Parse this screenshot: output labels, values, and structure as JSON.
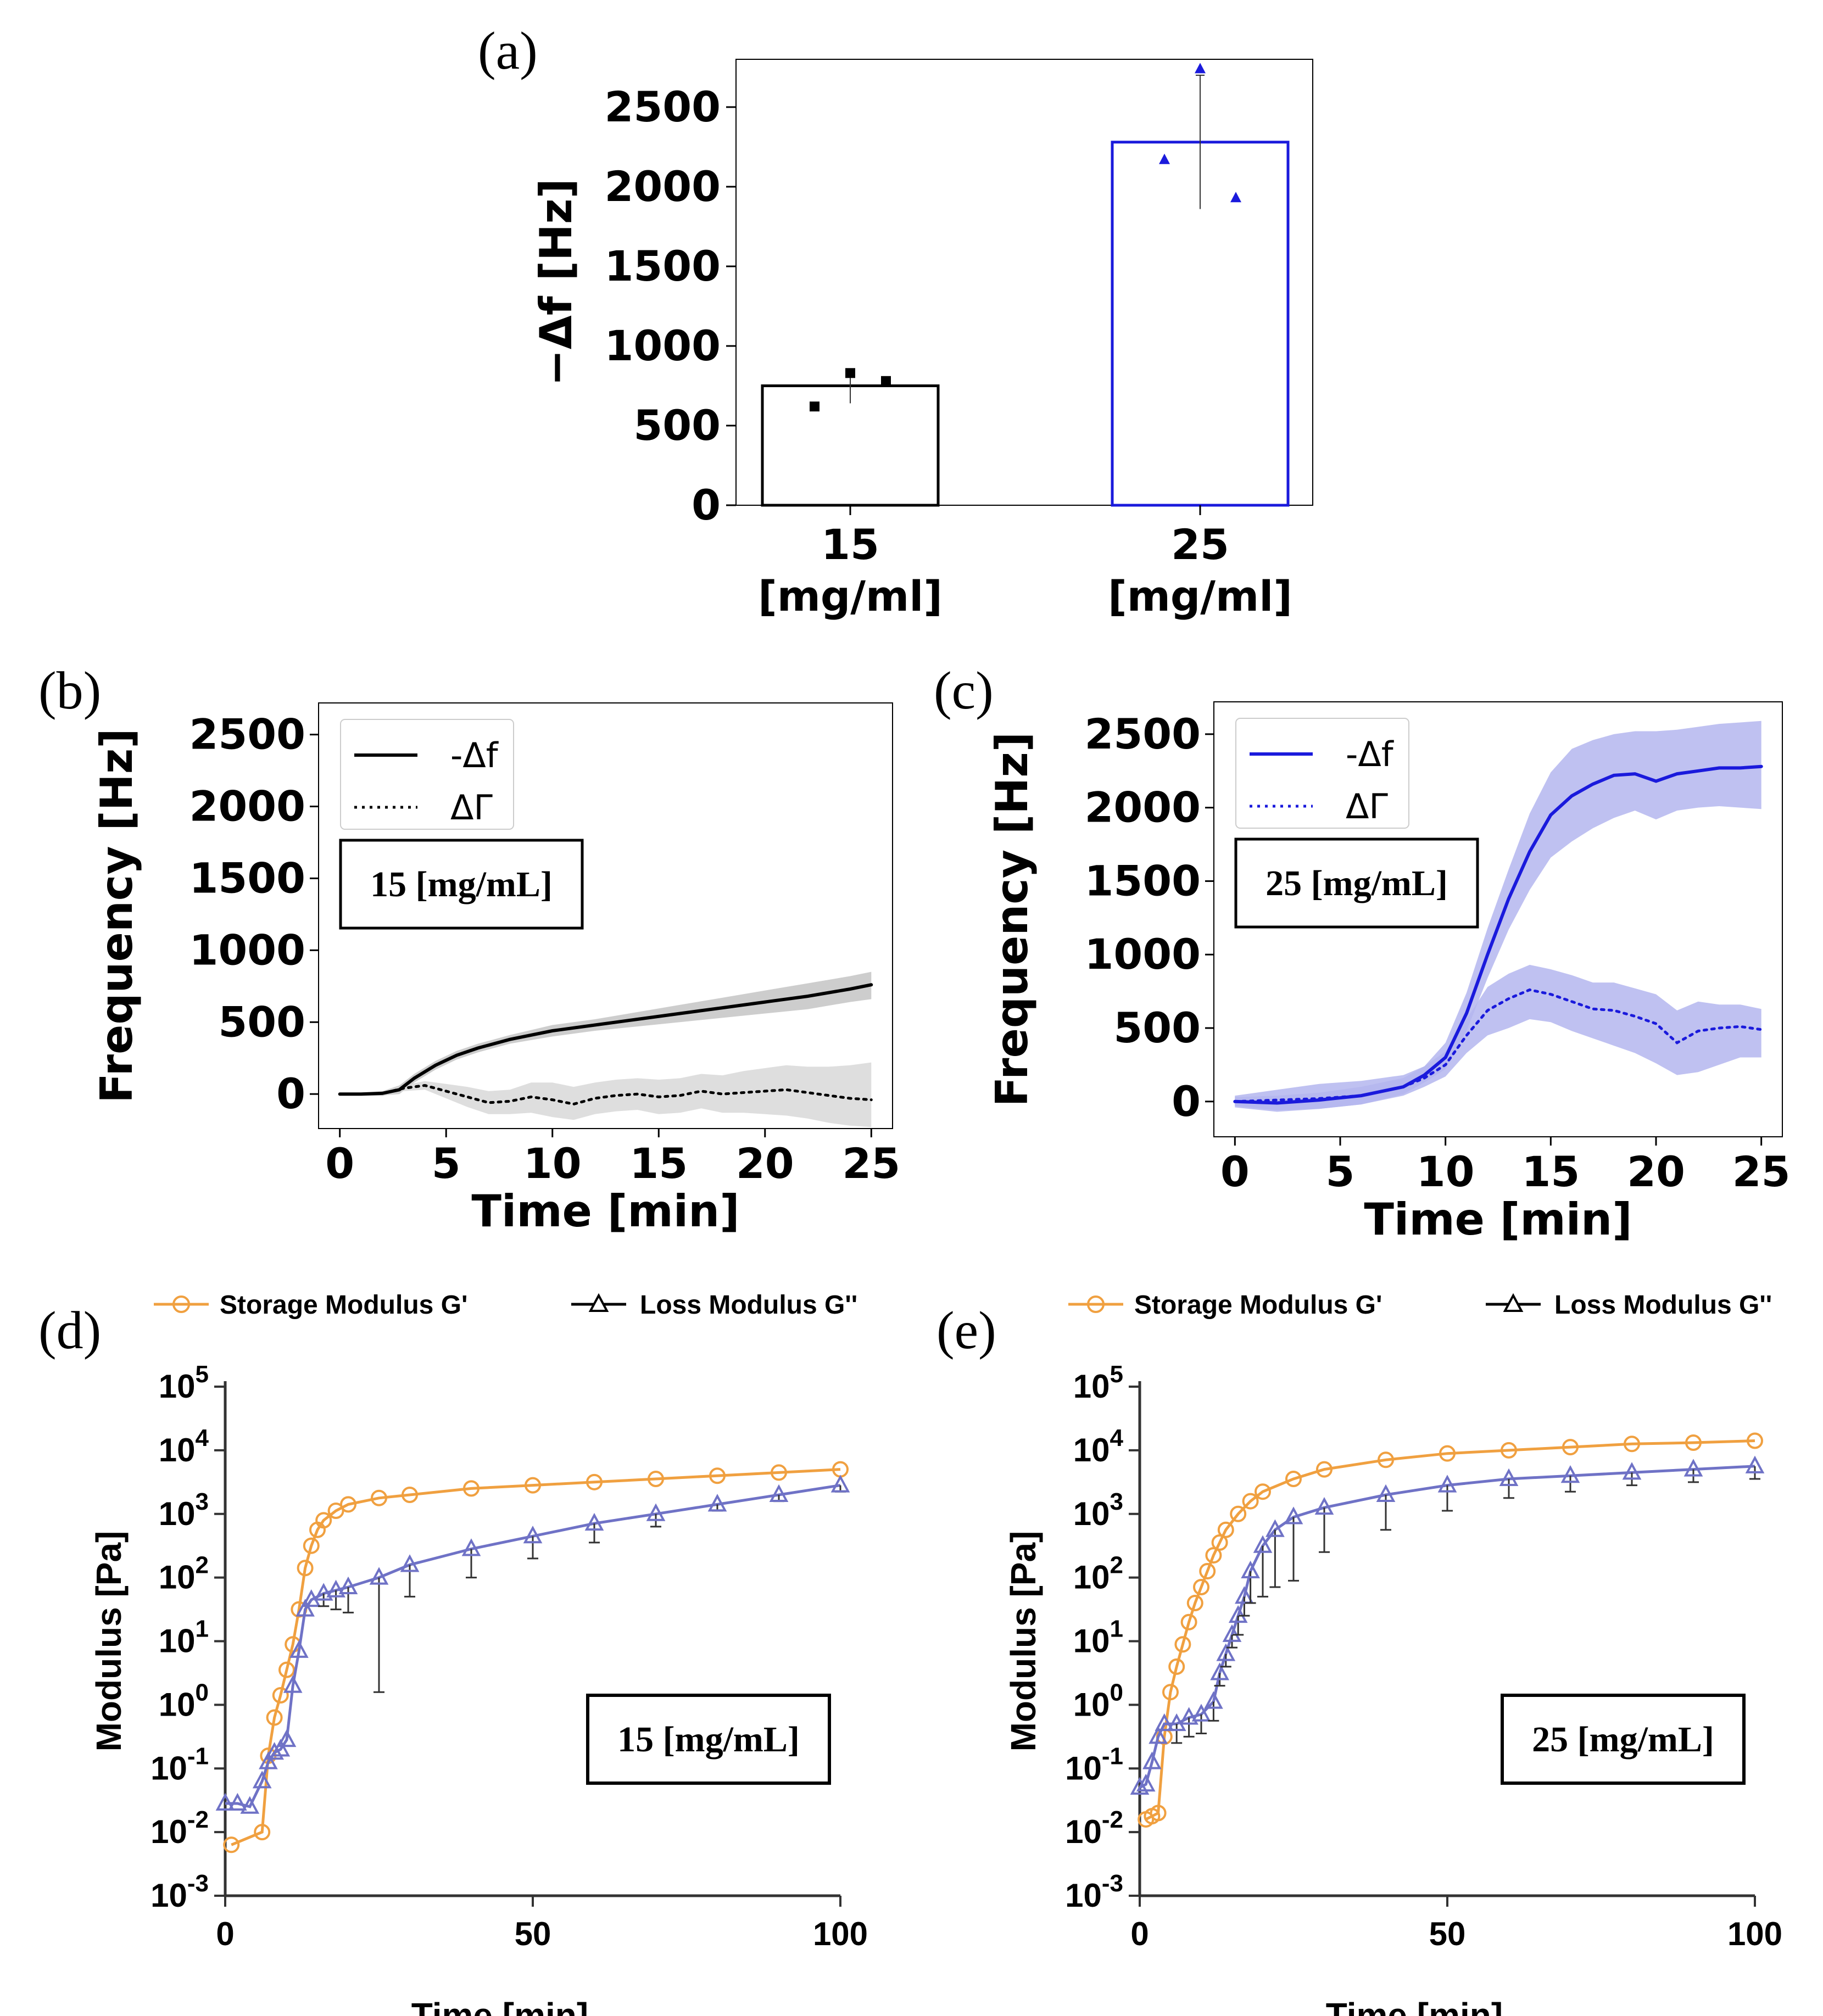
{
  "colors": {
    "black": "#000000",
    "blue": "#1a1adc",
    "blue_band": "#b4b6ee",
    "gray_band": "#c4c4c4",
    "orange": "#f0a040",
    "rheo_blue": "#6f72c6",
    "rheo_axis": "#333333"
  },
  "chart_data": [
    {
      "panel": "(a)",
      "type": "bar",
      "categories": [
        "15",
        "25"
      ],
      "category_units": [
        "[mg/ml]",
        "[mg/ml]"
      ],
      "values": [
        750,
        2280
      ],
      "errors": [
        [
          640,
          830
        ],
        [
          1860,
          2700
        ]
      ],
      "points": [
        [
          620,
          830,
          780
        ],
        [
          2170,
          2740,
          1930
        ]
      ],
      "bar_colors": [
        "#000000",
        "#1a1adc"
      ],
      "ylabel": "−Δf [Hz]",
      "ylim": [
        0,
        2800
      ],
      "yticks": [
        0,
        500,
        1000,
        1500,
        2000,
        2500
      ]
    },
    {
      "panel": "(b)",
      "type": "line",
      "xlabel": "Time [min]",
      "ylabel": "Frequency [Hz]",
      "xlim": [
        -1,
        26
      ],
      "ylim": [
        -240,
        2720
      ],
      "xticks": [
        0,
        5,
        10,
        15,
        20,
        25
      ],
      "yticks": [
        0,
        500,
        1000,
        1500,
        2000,
        2500
      ],
      "annotation": "15 [mg/mL]",
      "series": [
        {
          "name": "-Δf",
          "style": "solid",
          "color": "#000000",
          "band_color": "#c4c4c4",
          "x": [
            0,
            1,
            2,
            2.8,
            3.5,
            4.5,
            5.5,
            6.5,
            8,
            10,
            12,
            14,
            16,
            18,
            20,
            22,
            24,
            25
          ],
          "y": [
            0,
            0,
            5,
            30,
            110,
            200,
            270,
            320,
            380,
            440,
            480,
            520,
            560,
            600,
            640,
            680,
            730,
            760
          ],
          "band": [
            [
              0,
              0
            ],
            [
              -8,
              8
            ],
            [
              -10,
              20
            ],
            [
              0,
              60
            ],
            [
              80,
              140
            ],
            [
              170,
              230
            ],
            [
              240,
              300
            ],
            [
              290,
              350
            ],
            [
              350,
              410
            ],
            [
              400,
              480
            ],
            [
              440,
              520
            ],
            [
              470,
              570
            ],
            [
              500,
              620
            ],
            [
              530,
              670
            ],
            [
              560,
              720
            ],
            [
              590,
              770
            ],
            [
              640,
              820
            ],
            [
              660,
              850
            ]
          ]
        },
        {
          "name": "ΔΓ",
          "style": "dotted",
          "color": "#000000",
          "band_color": "#d8d8d8",
          "x": [
            0,
            1,
            2,
            3,
            4,
            5,
            6,
            7,
            8,
            9,
            10,
            11,
            12,
            13,
            14,
            15,
            16,
            17,
            18,
            19,
            20,
            21,
            22,
            23,
            24,
            25
          ],
          "y": [
            0,
            0,
            5,
            40,
            60,
            20,
            -20,
            -60,
            -50,
            -20,
            -40,
            -70,
            -30,
            -10,
            0,
            -20,
            -10,
            20,
            0,
            10,
            20,
            30,
            10,
            -10,
            -30,
            -40
          ],
          "band": [
            [
              0,
              0
            ],
            [
              -10,
              10
            ],
            [
              -15,
              20
            ],
            [
              20,
              60
            ],
            [
              30,
              90
            ],
            [
              -30,
              70
            ],
            [
              -90,
              50
            ],
            [
              -140,
              20
            ],
            [
              -140,
              30
            ],
            [
              -130,
              80
            ],
            [
              -160,
              80
            ],
            [
              -180,
              50
            ],
            [
              -140,
              80
            ],
            [
              -120,
              100
            ],
            [
              -110,
              110
            ],
            [
              -140,
              100
            ],
            [
              -130,
              110
            ],
            [
              -100,
              140
            ],
            [
              -130,
              130
            ],
            [
              -130,
              160
            ],
            [
              -140,
              180
            ],
            [
              -150,
              200
            ],
            [
              -170,
              190
            ],
            [
              -200,
              190
            ],
            [
              -220,
              200
            ],
            [
              -230,
              220
            ]
          ]
        }
      ],
      "legend": [
        "-Δf",
        "ΔΓ"
      ]
    },
    {
      "panel": "(c)",
      "type": "line",
      "xlabel": "Time [min]",
      "ylabel": "Frequency [Hz]",
      "xlim": [
        -1,
        26
      ],
      "ylim": [
        -240,
        2720
      ],
      "xticks": [
        0,
        5,
        10,
        15,
        20,
        25
      ],
      "yticks": [
        0,
        500,
        1000,
        1500,
        2000,
        2500
      ],
      "annotation": "25 [mg/mL]",
      "series": [
        {
          "name": "-Δf",
          "style": "solid",
          "color": "#1a1adc",
          "band_color": "#b4b6ee",
          "x": [
            0,
            2,
            4,
            6,
            8,
            9,
            10,
            11,
            12,
            13,
            14,
            15,
            16,
            17,
            18,
            19,
            20,
            21,
            22,
            23,
            24,
            25
          ],
          "y": [
            0,
            -10,
            10,
            40,
            100,
            180,
            300,
            600,
            1000,
            1380,
            1700,
            1950,
            2080,
            2160,
            2220,
            2230,
            2180,
            2230,
            2250,
            2270,
            2270,
            2280
          ],
          "band": [
            [
              -30,
              30
            ],
            [
              -60,
              40
            ],
            [
              -50,
              60
            ],
            [
              -20,
              100
            ],
            [
              50,
              160
            ],
            [
              130,
              240
            ],
            [
              220,
              400
            ],
            [
              480,
              740
            ],
            [
              840,
              1180
            ],
            [
              1170,
              1580
            ],
            [
              1440,
              1960
            ],
            [
              1660,
              2240
            ],
            [
              1770,
              2400
            ],
            [
              1860,
              2460
            ],
            [
              1930,
              2500
            ],
            [
              1980,
              2520
            ],
            [
              1920,
              2520
            ],
            [
              1980,
              2530
            ],
            [
              2000,
              2550
            ],
            [
              2010,
              2570
            ],
            [
              2000,
              2580
            ],
            [
              1990,
              2590
            ]
          ]
        },
        {
          "name": "ΔΓ",
          "style": "dotted",
          "color": "#1a1adc",
          "band_color": "#b4b6ee",
          "x": [
            0,
            2,
            4,
            6,
            8,
            9,
            10,
            11,
            12,
            13,
            14,
            15,
            16,
            17,
            18,
            19,
            20,
            21,
            22,
            23,
            24,
            25
          ],
          "y": [
            0,
            10,
            20,
            40,
            100,
            160,
            250,
            450,
            620,
            700,
            760,
            730,
            680,
            630,
            620,
            580,
            530,
            400,
            480,
            500,
            510,
            490
          ],
          "band": [
            [
              -40,
              40
            ],
            [
              -70,
              80
            ],
            [
              -50,
              120
            ],
            [
              -20,
              140
            ],
            [
              40,
              180
            ],
            [
              100,
              240
            ],
            [
              170,
              340
            ],
            [
              330,
              560
            ],
            [
              450,
              780
            ],
            [
              500,
              870
            ],
            [
              560,
              930
            ],
            [
              540,
              900
            ],
            [
              480,
              860
            ],
            [
              430,
              810
            ],
            [
              380,
              810
            ],
            [
              330,
              770
            ],
            [
              260,
              730
            ],
            [
              180,
              620
            ],
            [
              200,
              680
            ],
            [
              250,
              660
            ],
            [
              300,
              660
            ],
            [
              300,
              630
            ]
          ]
        }
      ],
      "legend": [
        "-Δf",
        "ΔΓ"
      ]
    },
    {
      "panel": "(d)",
      "type": "scatter",
      "xlabel": "Time [min]",
      "ylabel": "Modulus [Pa]",
      "yscale": "log",
      "xlim": [
        0,
        100
      ],
      "ylim_log10": [
        -3,
        5
      ],
      "xticks": [
        0,
        50,
        100
      ],
      "ytick_exponents": [
        -3,
        -2,
        -1,
        0,
        1,
        2,
        3,
        4,
        5
      ],
      "annotation": "15 [mg/mL]",
      "legend": [
        "Storage Modulus G'",
        "Loss Modulus G''"
      ],
      "series": [
        {
          "name": "Storage Modulus G'",
          "marker": "circle",
          "color": "#f0a040",
          "x": [
            1,
            6,
            7,
            8,
            9,
            10,
            11,
            12,
            13,
            14,
            15,
            16,
            18,
            20,
            25,
            30,
            40,
            50,
            60,
            70,
            80,
            90,
            100
          ],
          "log10_y": [
            -2.2,
            -2.0,
            -0.8,
            -0.2,
            0.15,
            0.55,
            0.95,
            1.5,
            2.15,
            2.5,
            2.75,
            2.9,
            3.05,
            3.15,
            3.25,
            3.3,
            3.4,
            3.45,
            3.5,
            3.55,
            3.6,
            3.65,
            3.7
          ]
        },
        {
          "name": "Loss Modulus G''",
          "marker": "triangle",
          "color": "#6f72c6",
          "x": [
            0,
            2,
            4,
            6,
            7,
            8,
            9,
            10,
            11,
            12,
            13,
            14,
            16,
            18,
            20,
            25,
            30,
            40,
            50,
            60,
            70,
            80,
            90,
            100
          ],
          "log10_y": [
            -1.55,
            -1.55,
            -1.6,
            -1.2,
            -0.9,
            -0.75,
            -0.7,
            -0.55,
            0.3,
            0.85,
            1.5,
            1.65,
            1.75,
            1.8,
            1.85,
            2.0,
            2.2,
            2.45,
            2.65,
            2.85,
            3.0,
            3.15,
            3.3,
            3.45
          ],
          "log10_err_low": [
            0,
            0,
            0,
            0,
            0,
            0,
            0,
            0,
            0,
            0,
            0,
            0,
            0.2,
            0.3,
            0.4,
            1.8,
            0.5,
            0.45,
            0.35,
            0.3,
            0.2,
            0.1,
            0.1,
            0.1
          ]
        }
      ]
    },
    {
      "panel": "(e)",
      "type": "scatter",
      "xlabel": "Time [min]",
      "ylabel": "Modulus [Pa]",
      "yscale": "log",
      "xlim": [
        0,
        100
      ],
      "ylim_log10": [
        -3,
        5
      ],
      "xticks": [
        0,
        50,
        100
      ],
      "ytick_exponents": [
        -3,
        -2,
        -1,
        0,
        1,
        2,
        3,
        4,
        5
      ],
      "annotation": "25 [mg/mL]",
      "legend": [
        "Storage Modulus G'",
        "Loss Modulus G''"
      ],
      "series": [
        {
          "name": "Storage Modulus G'",
          "marker": "circle",
          "color": "#f0a040",
          "x": [
            1,
            2,
            3,
            4,
            5,
            6,
            7,
            8,
            9,
            10,
            11,
            12,
            13,
            14,
            16,
            18,
            20,
            25,
            30,
            40,
            50,
            60,
            70,
            80,
            90,
            100
          ],
          "log10_y": [
            -1.8,
            -1.75,
            -1.7,
            -0.5,
            0.2,
            0.6,
            0.95,
            1.3,
            1.6,
            1.85,
            2.1,
            2.35,
            2.55,
            2.75,
            3.0,
            3.2,
            3.35,
            3.55,
            3.7,
            3.85,
            3.95,
            4.0,
            4.05,
            4.1,
            4.12,
            4.15
          ]
        },
        {
          "name": "Loss Modulus G''",
          "marker": "triangle",
          "color": "#6f72c6",
          "x": [
            0,
            1,
            2,
            3,
            4,
            6,
            8,
            10,
            12,
            13,
            14,
            15,
            16,
            17,
            18,
            20,
            22,
            25,
            30,
            40,
            50,
            60,
            70,
            80,
            90,
            100
          ],
          "log10_y": [
            -1.3,
            -1.25,
            -0.9,
            -0.5,
            -0.3,
            -0.3,
            -0.2,
            -0.15,
            0.05,
            0.5,
            0.8,
            1.1,
            1.4,
            1.7,
            2.1,
            2.5,
            2.75,
            2.95,
            3.1,
            3.3,
            3.45,
            3.55,
            3.6,
            3.65,
            3.7,
            3.75
          ],
          "log10_err_low": [
            0,
            0,
            0,
            0,
            0,
            0.3,
            0.3,
            0.3,
            0.3,
            0.2,
            0.2,
            0.2,
            0.3,
            0.3,
            0.5,
            0.8,
            0.9,
            1.0,
            0.7,
            0.55,
            0.4,
            0.3,
            0.25,
            0.2,
            0.2,
            0.2
          ]
        }
      ]
    }
  ]
}
